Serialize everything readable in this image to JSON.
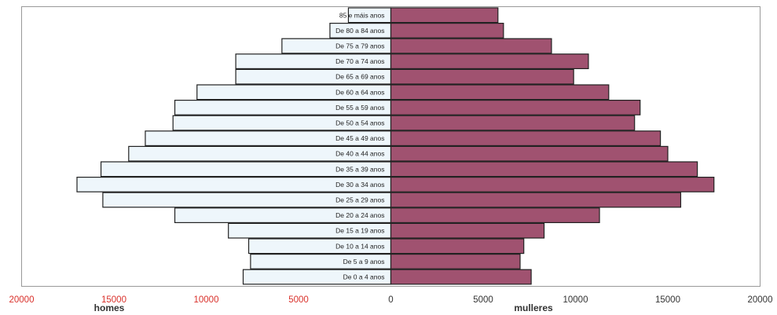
{
  "chart_data": {
    "type": "bar",
    "orientation": "horizontal",
    "layout": "population-pyramid",
    "categories": [
      "85 e máis anos",
      "De 80 a 84 anos",
      "De 75 a 79 anos",
      "De 70 a 74 anos",
      "De 65 a 69 anos",
      "De 60 a 64 anos",
      "De 55 a 59 anos",
      "De 50 a 54 anos",
      "De 45 a 49 anos",
      "De 40 a 44 anos",
      "De 35 a 39 anos",
      "De 30 a 34 anos",
      "De 25 a 29 anos",
      "De 20 a 24 anos",
      "De 15 a 19 anos",
      "De 10 a 14 anos",
      "De 5 a 9 anos",
      "De 0 a 4 anos"
    ],
    "series": [
      {
        "name": "homes",
        "side": "left",
        "color": "#eef6fb",
        "values": [
          2300,
          3300,
          5900,
          8400,
          8400,
          10500,
          11700,
          11800,
          13300,
          14200,
          15700,
          17000,
          15600,
          11700,
          8800,
          7700,
          7600,
          8000
        ]
      },
      {
        "name": "mulleres",
        "side": "right",
        "color": "#a05270",
        "values": [
          5800,
          6100,
          8700,
          10700,
          9900,
          11800,
          13500,
          13200,
          14600,
          15000,
          16600,
          17500,
          15700,
          11300,
          8300,
          7200,
          7000,
          7600
        ]
      }
    ],
    "xlim": [
      -20000,
      20000
    ],
    "x_ticks": [
      {
        "value": -20000,
        "label": "20000",
        "color": "#d9312b"
      },
      {
        "value": -15000,
        "label": "15000",
        "color": "#d9312b"
      },
      {
        "value": -10000,
        "label": "10000",
        "color": "#d9312b"
      },
      {
        "value": -5000,
        "label": "5000",
        "color": "#d9312b"
      },
      {
        "value": 0,
        "label": "0",
        "color": "#333333"
      },
      {
        "value": 5000,
        "label": "5000",
        "color": "#333333"
      },
      {
        "value": 10000,
        "label": "10000",
        "color": "#333333"
      },
      {
        "value": 15000,
        "label": "15000",
        "color": "#333333"
      },
      {
        "value": 20000,
        "label": "20000",
        "color": "#333333"
      }
    ],
    "xlabel_left": "homes",
    "xlabel_right": "mulleres",
    "grid": false,
    "edge_color": "#222222"
  }
}
